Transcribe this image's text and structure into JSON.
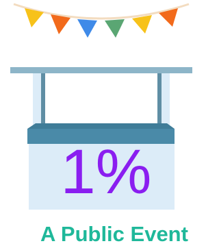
{
  "stat": "1%",
  "caption": "A Public Event"
}
